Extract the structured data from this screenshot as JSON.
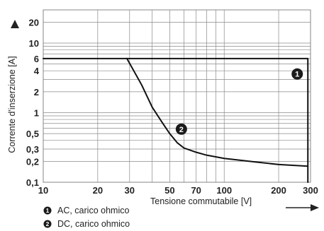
{
  "chart_data": {
    "type": "line",
    "x_scale": "log",
    "y_scale": "log",
    "xlim": [
      10,
      300
    ],
    "ylim": [
      0.1,
      30
    ],
    "xlabel": "Tensione commutabile [V]",
    "ylabel": "Corrente d'inserzione [A]",
    "x_ticks": [
      10,
      20,
      30,
      50,
      70,
      100,
      200,
      300
    ],
    "x_tick_labels": [
      "10",
      "20",
      "30",
      "50",
      "70",
      "100",
      "200",
      "300"
    ],
    "y_ticks": [
      0.1,
      0.2,
      0.3,
      0.5,
      1,
      2,
      4,
      6,
      10,
      20
    ],
    "y_tick_labels": [
      "0,1",
      "0,2",
      "0,3",
      "0,5",
      "1",
      "2",
      "4",
      "6",
      "10",
      "20"
    ],
    "grid": true,
    "series": [
      {
        "marker": "1",
        "name": "AC, carico ohmico",
        "x": [
          10,
          290,
          290
        ],
        "y": [
          6,
          6,
          0.1
        ]
      },
      {
        "marker": "2",
        "name": "DC, carico ohmico",
        "x": [
          29,
          35,
          40,
          45,
          50,
          55,
          60,
          70,
          80,
          100,
          150,
          200,
          290
        ],
        "y": [
          6,
          2.5,
          1.2,
          0.75,
          0.5,
          0.37,
          0.31,
          0.27,
          0.245,
          0.22,
          0.195,
          0.18,
          0.17
        ]
      }
    ],
    "legend": [
      {
        "marker": "1",
        "label": "AC, carico ohmico"
      },
      {
        "marker": "2",
        "label": "DC, carico ohmico"
      }
    ]
  }
}
